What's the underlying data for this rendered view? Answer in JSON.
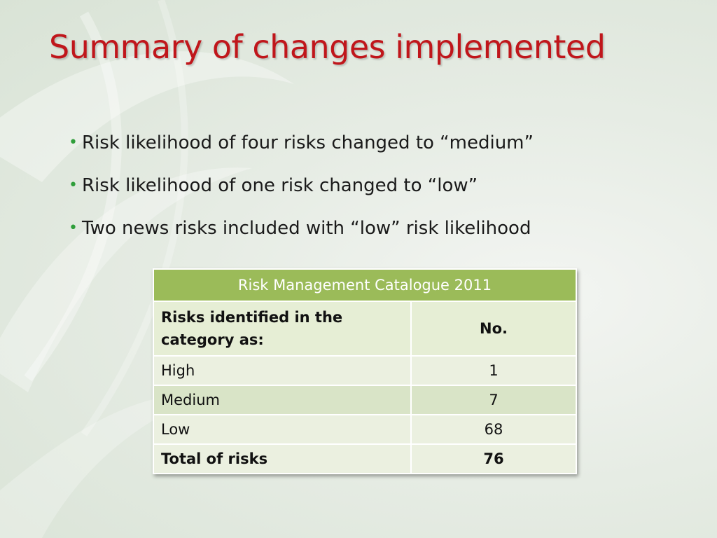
{
  "slide": {
    "title": "Summary of changes implemented",
    "bullets": [
      "Risk likelihood of four risks changed to “medium”",
      "Risk likelihood of one risk changed to “low”",
      "Two news risks included with “low” risk likelihood"
    ]
  },
  "table": {
    "caption": "Risk Management Catalogue 2011",
    "header": {
      "label": "Risks identified in the category as:",
      "value": "No."
    },
    "rows": [
      {
        "label": "High",
        "value": "1"
      },
      {
        "label": "Medium",
        "value": "7"
      },
      {
        "label": "Low",
        "value": "68"
      }
    ],
    "total": {
      "label": "Total of risks",
      "value": "76"
    }
  },
  "colors": {
    "title": "#c0161b",
    "bullet": "#2f9e3a",
    "table_header": "#9bbb59"
  }
}
